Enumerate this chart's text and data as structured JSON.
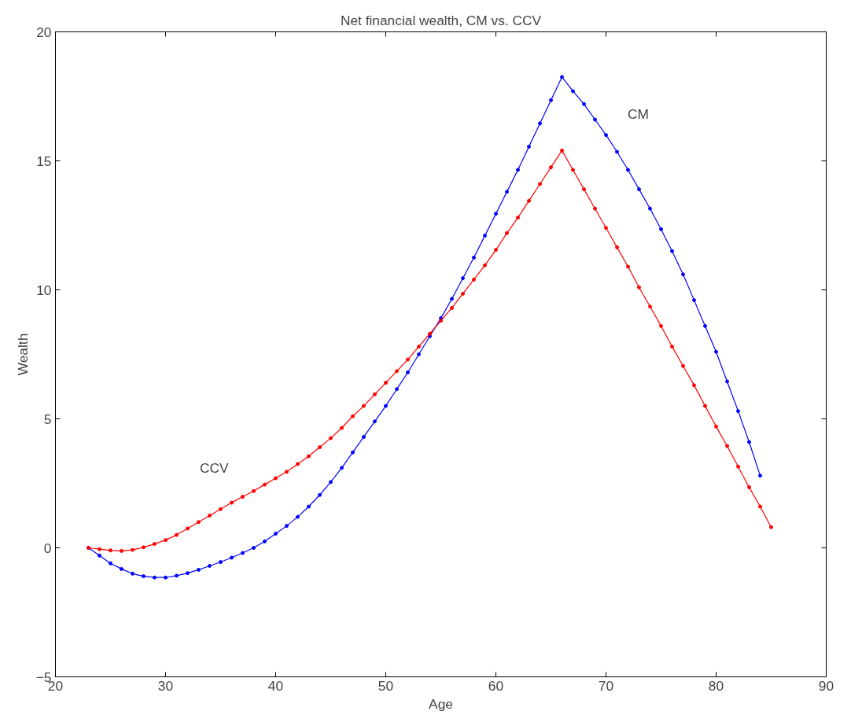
{
  "chart_data": {
    "type": "line",
    "title": "Net financial wealth, CM vs. CCV",
    "xlabel": "Age",
    "ylabel": "Wealth",
    "xlim": [
      20,
      90
    ],
    "xticks": [
      20,
      30,
      40,
      50,
      60,
      70,
      80,
      90
    ],
    "ylim": [
      -5,
      20
    ],
    "yticks": [
      -5,
      0,
      5,
      10,
      15,
      20
    ],
    "grid": false,
    "marker": "circle",
    "line_style": "solid",
    "series": [
      {
        "name": "CM",
        "color": "#0000ff",
        "x": [
          23,
          24,
          25,
          26,
          27,
          28,
          29,
          30,
          31,
          32,
          33,
          34,
          35,
          36,
          37,
          38,
          39,
          40,
          41,
          42,
          43,
          44,
          45,
          46,
          47,
          48,
          49,
          50,
          51,
          52,
          53,
          54,
          55,
          56,
          57,
          58,
          59,
          60,
          61,
          62,
          63,
          64,
          65,
          66,
          67,
          68,
          69,
          70,
          71,
          72,
          73,
          74,
          75,
          76,
          77,
          78,
          79,
          80,
          81,
          82,
          83,
          84
        ],
        "values": [
          0,
          -0.3,
          -0.6,
          -0.82,
          -1.0,
          -1.1,
          -1.15,
          -1.15,
          -1.08,
          -0.98,
          -0.85,
          -0.7,
          -0.55,
          -0.38,
          -0.2,
          0.0,
          0.25,
          0.55,
          0.85,
          1.2,
          1.6,
          2.05,
          2.55,
          3.1,
          3.7,
          4.3,
          4.9,
          5.5,
          6.15,
          6.8,
          7.5,
          8.2,
          8.9,
          9.65,
          10.45,
          11.25,
          12.1,
          12.95,
          13.8,
          14.65,
          15.55,
          16.45,
          17.35,
          18.25,
          17.7,
          17.2,
          16.6,
          16.0,
          15.35,
          14.65,
          13.9,
          13.15,
          12.35,
          11.5,
          10.6,
          9.6,
          8.6,
          7.6,
          6.45,
          5.3,
          4.1,
          2.8
        ]
      },
      {
        "name": "CCV",
        "color": "#ff0000",
        "x": [
          23,
          24,
          25,
          26,
          27,
          28,
          29,
          30,
          31,
          32,
          33,
          34,
          35,
          36,
          37,
          38,
          39,
          40,
          41,
          42,
          43,
          44,
          45,
          46,
          47,
          48,
          49,
          50,
          51,
          52,
          53,
          54,
          55,
          56,
          57,
          58,
          59,
          60,
          61,
          62,
          63,
          64,
          65,
          66,
          67,
          68,
          69,
          70,
          71,
          72,
          73,
          74,
          75,
          76,
          77,
          78,
          79,
          80,
          81,
          82,
          83,
          84,
          85
        ],
        "values": [
          0,
          -0.05,
          -0.1,
          -0.12,
          -0.08,
          0.02,
          0.15,
          0.3,
          0.5,
          0.75,
          1.0,
          1.25,
          1.5,
          1.75,
          1.98,
          2.2,
          2.45,
          2.7,
          2.95,
          3.25,
          3.55,
          3.9,
          4.25,
          4.65,
          5.1,
          5.5,
          5.95,
          6.4,
          6.85,
          7.3,
          7.8,
          8.3,
          8.8,
          9.3,
          9.85,
          10.4,
          10.95,
          11.55,
          12.2,
          12.8,
          13.45,
          14.1,
          14.75,
          15.4,
          14.65,
          13.9,
          13.15,
          12.4,
          11.65,
          10.9,
          10.1,
          9.35,
          8.6,
          7.8,
          7.05,
          6.3,
          5.5,
          4.7,
          3.95,
          3.15,
          2.35,
          1.6,
          0.8
        ]
      }
    ]
  }
}
